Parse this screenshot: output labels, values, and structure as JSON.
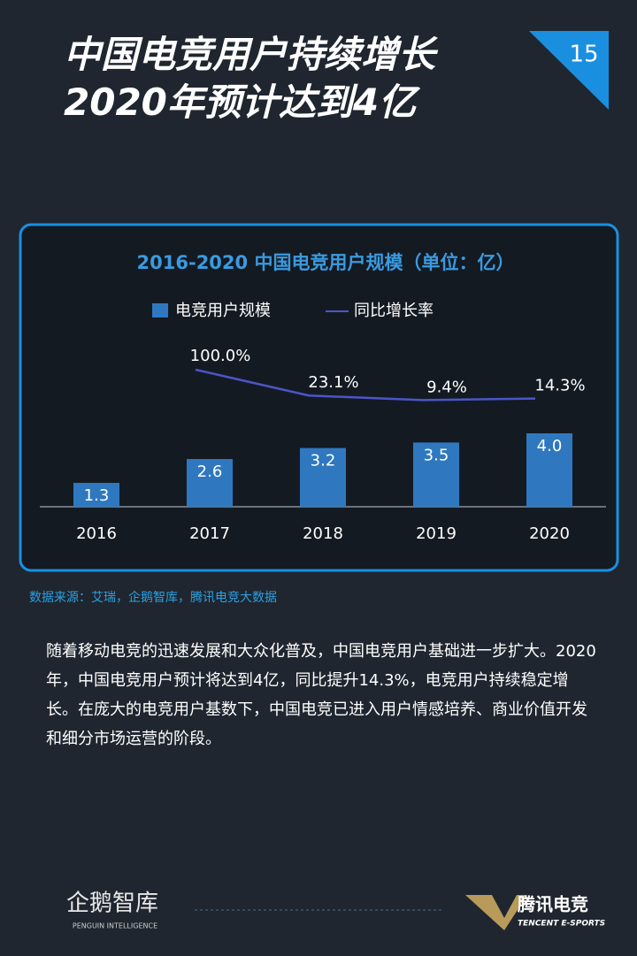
{
  "header": {
    "title_lines": [
      "中国电竞用户持续增长",
      "2020年预计达到4亿"
    ],
    "page_number": "15"
  },
  "chart_data": {
    "type": "bar",
    "title": "2016-2020 中国电竞用户规模（单位：亿）",
    "categories": [
      "2016",
      "2017",
      "2018",
      "2019",
      "2020"
    ],
    "ylim": [
      0,
      4
    ],
    "y2lim": [
      0,
      100
    ],
    "series": [
      {
        "name": "电竞用户规模",
        "color": "#2f78c0",
        "values": [
          1.3,
          2.6,
          3.2,
          3.5,
          4.0
        ],
        "value_labels": [
          "1.3",
          "2.6",
          "3.2",
          "3.5",
          "4.0"
        ]
      },
      {
        "name": "同比增长率",
        "color": "#4b55c8",
        "type": "line",
        "axis": "y2",
        "values": [
          null,
          100.0,
          23.1,
          9.4,
          14.3
        ],
        "value_labels": [
          null,
          "100.0%",
          "23.1%",
          "9.4%",
          "14.3%"
        ]
      }
    ]
  },
  "source": "数据来源：艾瑞，企鹅智库，腾讯电竞大数据",
  "body": "随着移动电竞的迅速发展和大众化普及，中国电竞用户基础进一步扩大。2020年，中国电竞用户预计将达到4亿，同比提升14.3%，电竞用户持续稳定增长。在庞大的电竞用户基数下，中国电竞已进入用户情感培养、商业价值开发和细分市场运营的阶段。",
  "footer": {
    "left_logo": "企鹅智库",
    "left_sub": "PENGUIN INTELLIGENCE",
    "right_logo": "腾讯电竞",
    "right_sub": "TENCENT E-SPORTS"
  }
}
